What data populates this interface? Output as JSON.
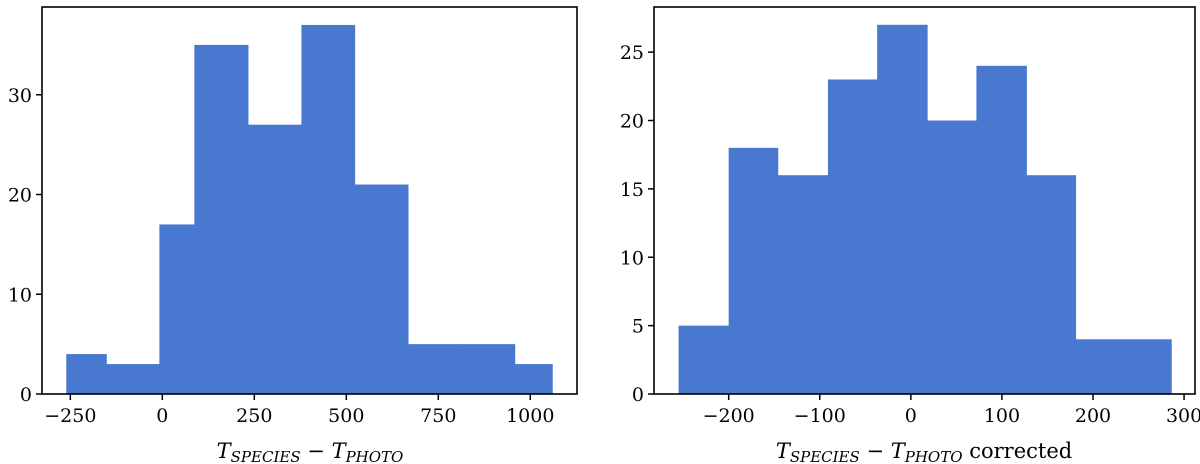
{
  "chart_data": [
    {
      "type": "bar",
      "subtype": "histogram",
      "title": "",
      "xlabel": {
        "main": "T",
        "sub1": "SPECIES",
        "op": " − ",
        "main2": "T",
        "sub2": "PHOTO",
        "suffix": ""
      },
      "ylabel": "",
      "color": "#4878cf",
      "xlim": [
        -327,
        1127
      ],
      "ylim": [
        0,
        38.8
      ],
      "xticks": [
        -250,
        0,
        250,
        500,
        750,
        1000
      ],
      "xtick_labels": [
        "−250",
        "0",
        "250",
        "500",
        "750",
        "1000"
      ],
      "yticks": [
        0,
        10,
        20,
        30
      ],
      "ytick_labels": [
        "0",
        "10",
        "20",
        "30"
      ],
      "bins": [
        {
          "x0": -261,
          "x1": -152,
          "value": 4
        },
        {
          "x0": -152,
          "x1": -8,
          "value": 3
        },
        {
          "x0": -8,
          "x1": 87,
          "value": 17
        },
        {
          "x0": 87,
          "x1": 233,
          "value": 35
        },
        {
          "x0": 233,
          "x1": 378,
          "value": 27
        },
        {
          "x0": 378,
          "x1": 523,
          "value": 37
        },
        {
          "x0": 523,
          "x1": 668,
          "value": 21
        },
        {
          "x0": 668,
          "x1": 813,
          "value": 5
        },
        {
          "x0": 813,
          "x1": 958,
          "value": 5
        },
        {
          "x0": 958,
          "x1": 1060,
          "value": 3
        }
      ],
      "grid": false,
      "legend": "none"
    },
    {
      "type": "bar",
      "subtype": "histogram",
      "title": "",
      "xlabel": {
        "main": "T",
        "sub1": "SPECIES",
        "op": " − ",
        "main2": "T",
        "sub2": "PHOTO",
        "suffix": " corrected"
      },
      "ylabel": "",
      "color": "#4878cf",
      "xlim": [
        -282,
        312
      ],
      "ylim": [
        0,
        28.3
      ],
      "xticks": [
        -200,
        -100,
        0,
        100,
        200,
        300
      ],
      "xtick_labels": [
        "−200",
        "−100",
        "0",
        "100",
        "200",
        "300"
      ],
      "yticks": [
        0,
        5,
        10,
        15,
        20,
        25
      ],
      "ytick_labels": [
        "0",
        "5",
        "10",
        "15",
        "20",
        "25"
      ],
      "bins": [
        {
          "x0": -255,
          "x1": -200,
          "value": 5
        },
        {
          "x0": -200,
          "x1": -146,
          "value": 18
        },
        {
          "x0": -146,
          "x1": -91,
          "value": 16
        },
        {
          "x0": -91,
          "x1": -37,
          "value": 23
        },
        {
          "x0": -37,
          "x1": 18,
          "value": 27
        },
        {
          "x0": 18,
          "x1": 72,
          "value": 20
        },
        {
          "x0": 72,
          "x1": 127,
          "value": 24
        },
        {
          "x0": 127,
          "x1": 181,
          "value": 16
        },
        {
          "x0": 181,
          "x1": 236,
          "value": 4
        },
        {
          "x0": 236,
          "x1": 286,
          "value": 4
        }
      ],
      "grid": false,
      "legend": "none"
    }
  ]
}
